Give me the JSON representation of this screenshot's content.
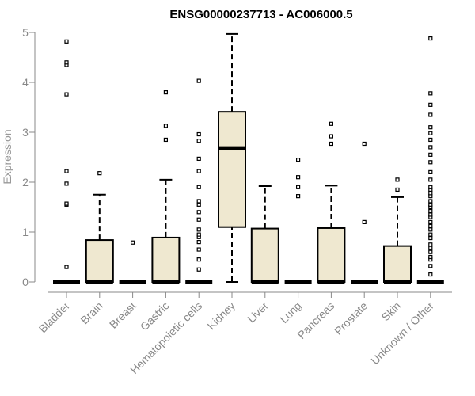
{
  "chart_data": {
    "type": "boxplot",
    "title": "ENSG00000237713 - AC006000.5",
    "ylabel": "Expression",
    "xlabel": "",
    "ylim": [
      0,
      5
    ],
    "yticks": [
      0,
      1,
      2,
      3,
      4,
      5
    ],
    "box_fill": "#efe8d0",
    "categories": [
      "Bladder",
      "Brain",
      "Breast",
      "Gastric",
      "Hematopoietic cells",
      "Kidney",
      "Liver",
      "Lung",
      "Pancreas",
      "Prostate",
      "Skin",
      "Unknown / Other"
    ],
    "boxes": [
      {
        "q1": 0,
        "median": 0,
        "q3": 0,
        "whisker_low": 0,
        "whisker_high": 0,
        "outliers": [
          0.3,
          1.55,
          1.57,
          1.97,
          2.22,
          3.76,
          4.35,
          4.4,
          4.82
        ]
      },
      {
        "q1": 0,
        "median": 0,
        "q3": 0.84,
        "whisker_low": 0,
        "whisker_high": 1.75,
        "outliers": [
          2.18
        ]
      },
      {
        "q1": 0,
        "median": 0,
        "q3": 0,
        "whisker_low": 0,
        "whisker_high": 0,
        "outliers": [
          0.79
        ]
      },
      {
        "q1": 0,
        "median": 0,
        "q3": 0.89,
        "whisker_low": 0,
        "whisker_high": 2.05,
        "outliers": [
          2.85,
          3.13,
          3.8
        ]
      },
      {
        "q1": 0,
        "median": 0,
        "q3": 0,
        "whisker_low": 0,
        "whisker_high": 0,
        "outliers": [
          0.25,
          0.45,
          0.65,
          0.8,
          0.9,
          0.95,
          1.05,
          1.25,
          1.4,
          1.55,
          1.62,
          1.9,
          2.22,
          2.47,
          2.83,
          2.96,
          4.03
        ]
      },
      {
        "q1": 1.1,
        "median": 2.68,
        "q3": 3.41,
        "whisker_low": 0,
        "whisker_high": 4.97,
        "outliers": []
      },
      {
        "q1": 0,
        "median": 0,
        "q3": 1.07,
        "whisker_low": 0,
        "whisker_high": 1.92,
        "outliers": []
      },
      {
        "q1": 0,
        "median": 0,
        "q3": 0,
        "whisker_low": 0,
        "whisker_high": 0,
        "outliers": [
          1.72,
          1.9,
          2.1,
          2.45
        ]
      },
      {
        "q1": 0,
        "median": 0,
        "q3": 1.08,
        "whisker_low": 0,
        "whisker_high": 1.93,
        "outliers": [
          2.77,
          2.92,
          3.17
        ]
      },
      {
        "q1": 0,
        "median": 0,
        "q3": 0,
        "whisker_low": 0,
        "whisker_high": 0,
        "outliers": [
          1.2,
          2.77
        ]
      },
      {
        "q1": 0,
        "median": 0,
        "q3": 0.72,
        "whisker_low": 0,
        "whisker_high": 1.7,
        "outliers": [
          1.85,
          2.05
        ]
      },
      {
        "q1": 0,
        "median": 0,
        "q3": 0,
        "whisker_low": 0,
        "whisker_high": 0,
        "outliers": [
          0.15,
          0.32,
          0.45,
          0.5,
          0.6,
          0.68,
          0.75,
          0.88,
          0.95,
          1.05,
          1.12,
          1.2,
          1.3,
          1.35,
          1.42,
          1.5,
          1.55,
          1.62,
          1.72,
          1.78,
          1.85,
          1.9,
          2.05,
          2.2,
          2.4,
          2.55,
          2.7,
          2.85,
          2.98,
          3.1,
          3.35,
          3.55,
          3.78,
          4.88
        ]
      }
    ]
  }
}
